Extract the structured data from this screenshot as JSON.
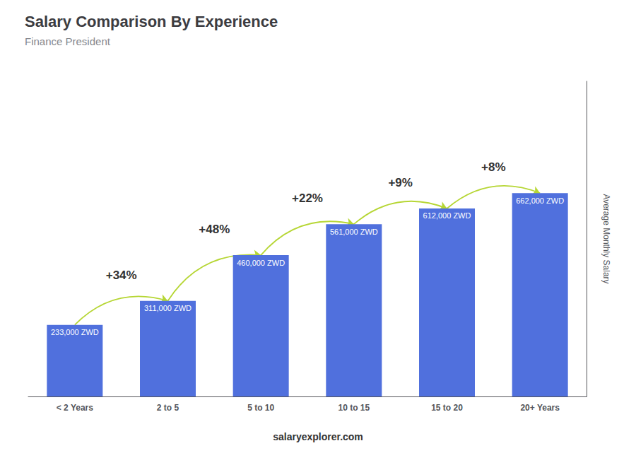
{
  "chart_data": {
    "type": "bar",
    "title": "Salary Comparison By Experience",
    "subtitle": "Finance President",
    "ylabel": "Average Monthly Salary",
    "categories": [
      "< 2 Years",
      "2 to 5",
      "5 to 10",
      "10 to 15",
      "15 to 20",
      "20+ Years"
    ],
    "values": [
      233000,
      311000,
      460000,
      561000,
      612000,
      662000
    ],
    "value_labels": [
      "233,000 ZWD",
      "311,000 ZWD",
      "460,000 ZWD",
      "561,000 ZWD",
      "612,000 ZWD",
      "662,000 ZWD"
    ],
    "data_labels": true,
    "annotations": [
      "+34%",
      "+48%",
      "+22%",
      "+9%",
      "+8%"
    ],
    "footer": "salaryexplorer.com",
    "ylim": [
      0,
      1026100
    ],
    "grid": false,
    "tick_labels": "x"
  }
}
